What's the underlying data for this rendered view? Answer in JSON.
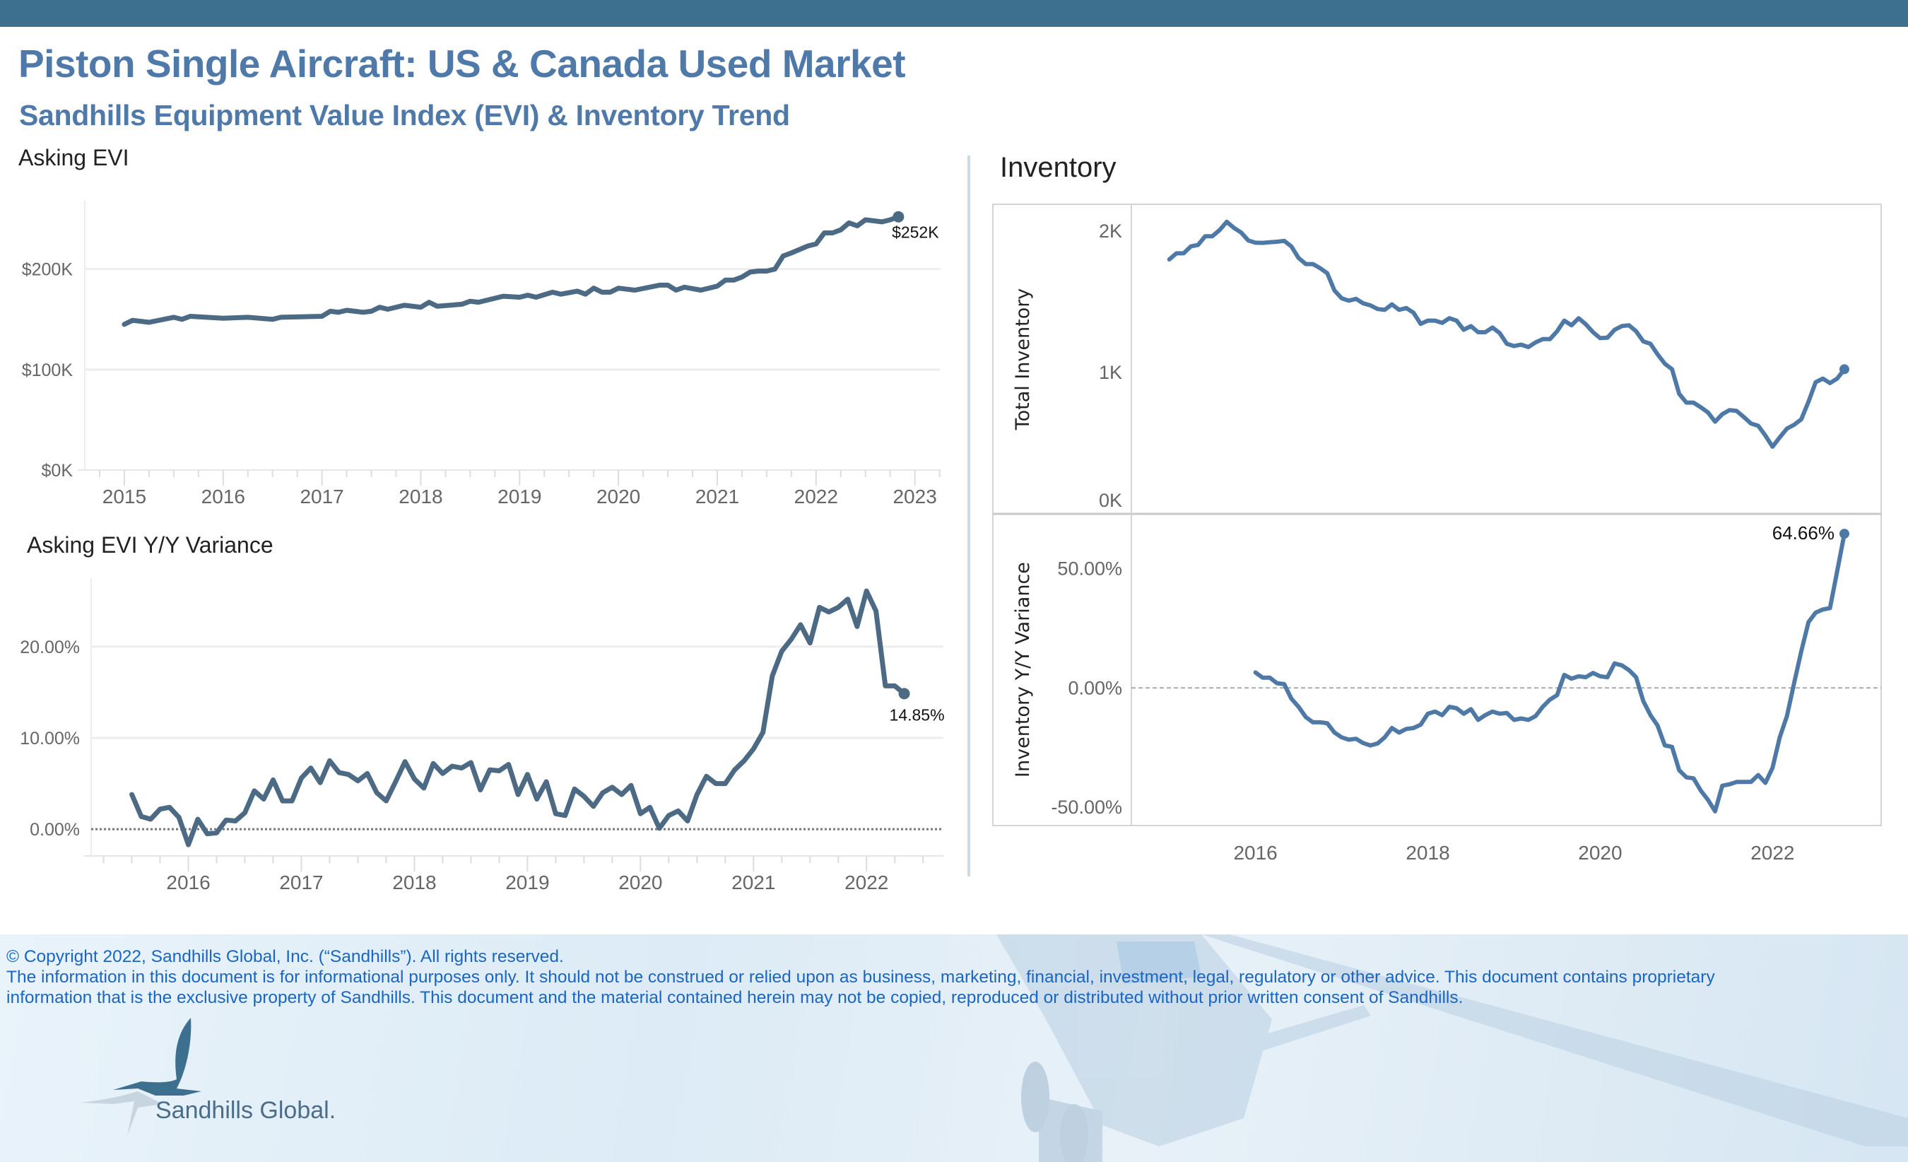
{
  "header": {
    "title": "Piston Single Aircraft:  US & Canada Used Market",
    "subtitle": "Sandhills Equipment Value Index (EVI) & Inventory Trend",
    "bar_color": "#3d6f8f",
    "title_color": "#4f79a8"
  },
  "section_titles": {
    "inventory": "Inventory"
  },
  "footer": {
    "copyright": "© Copyright 2022, Sandhills Global, Inc. (“Sandhills”). All rights reserved.",
    "disclaimer_line1": "The information in this document is for informational purposes only.  It should not be construed or relied upon as business, marketing, financial, investment, legal, regulatory or other advice. This document contains proprietary",
    "disclaimer_line2": "information that is the exclusive property of Sandhills. This document and the material contained herein may not be copied, reproduced or distributed without prior written consent of Sandhills.",
    "logo_text": "Sandhills Global.",
    "logo_icon": "crane-bird-icon",
    "background_image": "airplane-photo"
  },
  "chart_data": [
    {
      "id": "asking_evi",
      "type": "line",
      "title": "Asking EVI",
      "xlabel": "",
      "ylabel": "",
      "unit": "$K",
      "color": "#4d6a85",
      "grid": true,
      "xlim": [
        2014.6,
        2023.26
      ],
      "ylim": [
        0,
        268
      ],
      "x_ticks": [
        "2015",
        "2016",
        "2017",
        "2018",
        "2019",
        "2020",
        "2021",
        "2022",
        "2023"
      ],
      "y_ticks": [
        {
          "value": 0,
          "label": "$0K"
        },
        {
          "value": 100,
          "label": "$100K"
        },
        {
          "value": 200,
          "label": "$200K"
        }
      ],
      "points": [
        [
          "2015-01",
          145
        ],
        [
          "2015-02",
          149
        ],
        [
          "2015-04",
          147
        ],
        [
          "2015-07",
          152
        ],
        [
          "2015-08",
          150
        ],
        [
          "2015-09",
          153
        ],
        [
          "2016-01",
          151
        ],
        [
          "2016-04",
          152
        ],
        [
          "2016-07",
          150
        ],
        [
          "2016-08",
          152
        ],
        [
          "2017-01",
          153
        ],
        [
          "2017-02",
          158
        ],
        [
          "2017-03",
          157
        ],
        [
          "2017-04",
          159
        ],
        [
          "2017-06",
          157
        ],
        [
          "2017-07",
          158
        ],
        [
          "2017-08",
          162
        ],
        [
          "2017-09",
          160
        ],
        [
          "2017-11",
          164
        ],
        [
          "2018-01",
          162
        ],
        [
          "2018-02",
          167
        ],
        [
          "2018-03",
          163
        ],
        [
          "2018-06",
          165
        ],
        [
          "2018-07",
          168
        ],
        [
          "2018-08",
          167
        ],
        [
          "2018-11",
          173
        ],
        [
          "2019-01",
          172
        ],
        [
          "2019-02",
          174
        ],
        [
          "2019-03",
          172
        ],
        [
          "2019-05",
          177
        ],
        [
          "2019-06",
          175
        ],
        [
          "2019-08",
          178
        ],
        [
          "2019-09",
          175
        ],
        [
          "2019-10",
          181
        ],
        [
          "2019-11",
          177
        ],
        [
          "2019-12",
          177
        ],
        [
          "2020-01",
          181
        ],
        [
          "2020-03",
          179
        ],
        [
          "2020-06",
          184
        ],
        [
          "2020-07",
          184
        ],
        [
          "2020-08",
          179
        ],
        [
          "2020-09",
          182
        ],
        [
          "2020-11",
          179
        ],
        [
          "2021-01",
          183
        ],
        [
          "2021-02",
          189
        ],
        [
          "2021-03",
          189
        ],
        [
          "2021-04",
          192
        ],
        [
          "2021-05",
          197
        ],
        [
          "2021-06",
          198
        ],
        [
          "2021-07",
          198
        ],
        [
          "2021-08",
          200
        ],
        [
          "2021-09",
          213
        ],
        [
          "2021-10",
          216
        ],
        [
          "2021-12",
          223
        ],
        [
          "2022-01",
          225
        ],
        [
          "2022-02",
          236
        ],
        [
          "2022-03",
          236
        ],
        [
          "2022-04",
          239
        ],
        [
          "2022-05",
          246
        ],
        [
          "2022-06",
          243
        ],
        [
          "2022-07",
          249
        ],
        [
          "2022-08",
          248
        ],
        [
          "2022-09",
          247
        ],
        [
          "2022-10",
          249
        ],
        [
          "2022-11",
          252
        ]
      ],
      "end_label": "$252K"
    },
    {
      "id": "asking_evi_yoy",
      "type": "line",
      "title": "Asking EVI Y/Y Variance",
      "xlabel": "",
      "ylabel": "",
      "unit": "%",
      "color": "#4d6a85",
      "grid": true,
      "zero_line": "dotted",
      "xlim": [
        2015.14,
        2022.68
      ],
      "ylim": [
        -2.93,
        27.5
      ],
      "x_ticks": [
        "2016",
        "2017",
        "2018",
        "2019",
        "2020",
        "2021",
        "2022"
      ],
      "y_ticks": [
        {
          "value": 0,
          "label": "0.00%"
        },
        {
          "value": 10,
          "label": "10.00%"
        },
        {
          "value": 20,
          "label": "20.00%"
        }
      ],
      "start": "2015-07",
      "frequency": "monthly",
      "values": [
        3.8,
        1.4,
        1.1,
        2.2,
        2.4,
        1.3,
        -1.7,
        1.1,
        -0.5,
        -0.4,
        1.0,
        0.9,
        1.8,
        4.2,
        3.3,
        5.4,
        3.1,
        3.1,
        5.6,
        6.7,
        5.1,
        7.5,
        6.2,
        6.0,
        5.3,
        6.1,
        4.0,
        3.1,
        5.2,
        7.4,
        5.5,
        4.5,
        7.2,
        6.1,
        6.9,
        6.7,
        7.3,
        4.3,
        6.5,
        6.4,
        7.1,
        3.8,
        6.0,
        3.3,
        5.2,
        1.7,
        1.5,
        4.4,
        3.6,
        2.5,
        4.0,
        4.6,
        3.8,
        4.8,
        1.7,
        2.4,
        0.1,
        1.5,
        2.0,
        0.9,
        3.8,
        5.8,
        5.0,
        5.0,
        6.5,
        7.5,
        8.8,
        10.6,
        16.8,
        19.5,
        20.8,
        22.4,
        20.4,
        24.3,
        23.8,
        24.3,
        25.2,
        22.2,
        26.1,
        23.9,
        15.7,
        15.7,
        14.85
      ],
      "end_label": "14.85%"
    },
    {
      "id": "total_inventory",
      "type": "line",
      "title": "Inventory",
      "xlabel": "",
      "ylabel": "Total Inventory",
      "unit": "units",
      "color": "#4e79a7",
      "grid": false,
      "xlim": [
        2014.56,
        2023.26
      ],
      "ylim": [
        0,
        2190
      ],
      "x_ticks": [],
      "y_ticks": [
        {
          "value": 0,
          "label": "0K"
        },
        {
          "value": 1000,
          "label": "1K"
        },
        {
          "value": 2000,
          "label": "2K"
        }
      ],
      "start": "2015-01",
      "frequency": "monthly",
      "values": [
        1800,
        1843,
        1843,
        1892,
        1902,
        1964,
        1964,
        2007,
        2066,
        2023,
        1990,
        1934,
        1918,
        1917,
        1921,
        1925,
        1931,
        1892,
        1810,
        1767,
        1767,
        1738,
        1702,
        1580,
        1525,
        1508,
        1521,
        1489,
        1475,
        1449,
        1443,
        1482,
        1443,
        1456,
        1423,
        1344,
        1367,
        1367,
        1351,
        1384,
        1367,
        1302,
        1328,
        1285,
        1285,
        1318,
        1279,
        1203,
        1187,
        1197,
        1180,
        1213,
        1236,
        1236,
        1292,
        1367,
        1334,
        1384,
        1341,
        1285,
        1243,
        1246,
        1302,
        1328,
        1334,
        1292,
        1220,
        1203,
        1128,
        1062,
        1023,
        849,
        787,
        787,
        754,
        718,
        652,
        705,
        734,
        728,
        685,
        639,
        623,
        554,
        475,
        541,
        603,
        630,
        669,
        793,
        931,
        957,
        925,
        957,
        1023
      ]
    },
    {
      "id": "inventory_yoy",
      "type": "line",
      "title": "",
      "xlabel": "",
      "ylabel": "Inventory  Y/Y Variance",
      "unit": "%",
      "color": "#4e79a7",
      "grid": false,
      "zero_line": "dashed",
      "xlim": [
        2014.56,
        2023.26
      ],
      "ylim": [
        -57.7,
        73
      ],
      "x_ticks": [
        "2016",
        "2018",
        "2020",
        "2022"
      ],
      "y_ticks": [
        {
          "value": -50,
          "label": "-50.00%"
        },
        {
          "value": 0,
          "label": "0.00%"
        },
        {
          "value": 50,
          "label": "50.00%"
        }
      ],
      "start": "2016-01",
      "frequency": "monthly",
      "values": [
        6.5,
        4.3,
        4.3,
        2.0,
        1.6,
        -4.5,
        -7.9,
        -12.2,
        -14.4,
        -14.4,
        -14.8,
        -18.7,
        -20.7,
        -21.7,
        -21.3,
        -23.1,
        -24.1,
        -23.3,
        -20.7,
        -16.8,
        -18.7,
        -17.2,
        -16.8,
        -15.4,
        -10.8,
        -9.9,
        -11.4,
        -7.9,
        -8.5,
        -10.8,
        -8.9,
        -13.4,
        -11.4,
        -9.9,
        -10.8,
        -10.5,
        -13.4,
        -12.8,
        -13.4,
        -11.8,
        -7.9,
        -4.9,
        -3.0,
        5.5,
        3.9,
        4.9,
        4.5,
        6.3,
        4.9,
        4.5,
        10.3,
        9.5,
        7.5,
        4.5,
        -5.5,
        -11.4,
        -15.8,
        -24.1,
        -24.7,
        -34.5,
        -37.5,
        -37.9,
        -43.0,
        -46.9,
        -51.7,
        -41.0,
        -40.4,
        -39.4,
        -39.4,
        -39.4,
        -36.5,
        -39.8,
        -33.5,
        -20.7,
        -11.8,
        2.0,
        15.4,
        27.6,
        31.6,
        32.9,
        33.5,
        49.0,
        64.66
      ],
      "end_label": "64.66%"
    }
  ]
}
